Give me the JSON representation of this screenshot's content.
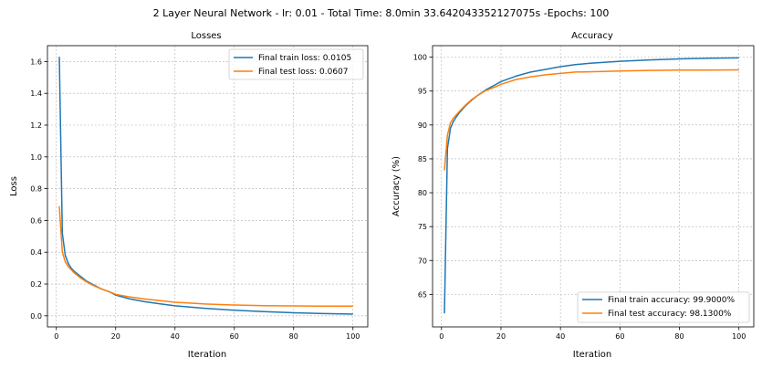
{
  "title": "2 Layer Neural Network - lr: 0.01 - Total Time: 8.0min 33.642043352127075s -Epochs: 100",
  "chart_data": [
    {
      "type": "line",
      "title": "Losses",
      "xlabel": "Iteration",
      "ylabel": "Loss",
      "xlim": [
        -3,
        105
      ],
      "ylim": [
        -0.07,
        1.7
      ],
      "xticks": [
        0,
        20,
        40,
        60,
        80,
        100
      ],
      "xtick_labels": [
        "0",
        "20",
        "40",
        "60",
        "80",
        "100"
      ],
      "yticks": [
        0.0,
        0.2,
        0.4,
        0.6,
        0.8,
        1.0,
        1.2,
        1.4,
        1.6
      ],
      "ytick_labels": [
        "0.0",
        "0.2",
        "0.4",
        "0.6",
        "0.8",
        "1.0",
        "1.2",
        "1.4",
        "1.6"
      ],
      "grid": true,
      "legend_position": "upper right",
      "series": [
        {
          "name": "Final train loss: 0.0105",
          "color": "#1f77b4",
          "x": [
            1,
            2,
            3,
            4,
            5,
            6,
            8,
            10,
            12,
            15,
            18,
            20,
            25,
            30,
            35,
            40,
            45,
            50,
            60,
            70,
            80,
            90,
            100
          ],
          "y": [
            1.63,
            0.52,
            0.38,
            0.33,
            0.3,
            0.28,
            0.25,
            0.22,
            0.2,
            0.17,
            0.15,
            0.13,
            0.105,
            0.088,
            0.075,
            0.063,
            0.055,
            0.047,
            0.035,
            0.026,
            0.019,
            0.014,
            0.0105
          ]
        },
        {
          "name": "Final test loss: 0.0607",
          "color": "#ff7f0e",
          "x": [
            1,
            2,
            3,
            4,
            5,
            6,
            8,
            10,
            12,
            15,
            18,
            20,
            25,
            30,
            35,
            40,
            45,
            50,
            60,
            70,
            80,
            90,
            100
          ],
          "y": [
            0.69,
            0.4,
            0.34,
            0.31,
            0.29,
            0.27,
            0.24,
            0.215,
            0.195,
            0.17,
            0.15,
            0.135,
            0.118,
            0.105,
            0.095,
            0.085,
            0.08,
            0.074,
            0.068,
            0.064,
            0.062,
            0.061,
            0.0607
          ]
        }
      ]
    },
    {
      "type": "line",
      "title": "Accuracy",
      "xlabel": "Iteration",
      "ylabel": "Accuracy (%)",
      "xlim": [
        -3,
        105
      ],
      "ylim": [
        60.2,
        101.7
      ],
      "xticks": [
        0,
        20,
        40,
        60,
        80,
        100
      ],
      "xtick_labels": [
        "0",
        "20",
        "40",
        "60",
        "80",
        "100"
      ],
      "yticks": [
        65,
        70,
        75,
        80,
        85,
        90,
        95,
        100
      ],
      "ytick_labels": [
        "65",
        "70",
        "75",
        "80",
        "85",
        "90",
        "95",
        "100"
      ],
      "grid": true,
      "legend_position": "lower right",
      "series": [
        {
          "name": "Final train accuracy: 99.9000%",
          "color": "#1f77b4",
          "x": [
            1,
            2,
            3,
            4,
            5,
            6,
            8,
            10,
            12,
            15,
            18,
            20,
            25,
            30,
            35,
            40,
            45,
            50,
            60,
            70,
            80,
            90,
            100
          ],
          "y": [
            62.2,
            86.5,
            89.5,
            90.5,
            91.2,
            91.8,
            92.8,
            93.6,
            94.3,
            95.2,
            95.9,
            96.4,
            97.2,
            97.8,
            98.2,
            98.6,
            98.9,
            99.1,
            99.4,
            99.6,
            99.75,
            99.85,
            99.9
          ]
        },
        {
          "name": "Final test accuracy: 98.1300%",
          "color": "#ff7f0e",
          "x": [
            1,
            2,
            3,
            4,
            5,
            6,
            8,
            10,
            12,
            15,
            18,
            20,
            25,
            30,
            35,
            40,
            45,
            50,
            60,
            70,
            80,
            90,
            100
          ],
          "y": [
            83.3,
            88.5,
            90.3,
            91.0,
            91.5,
            92.0,
            92.9,
            93.7,
            94.3,
            95.1,
            95.6,
            96.0,
            96.7,
            97.1,
            97.4,
            97.6,
            97.8,
            97.85,
            97.95,
            98.05,
            98.1,
            98.1,
            98.13
          ]
        }
      ]
    }
  ]
}
